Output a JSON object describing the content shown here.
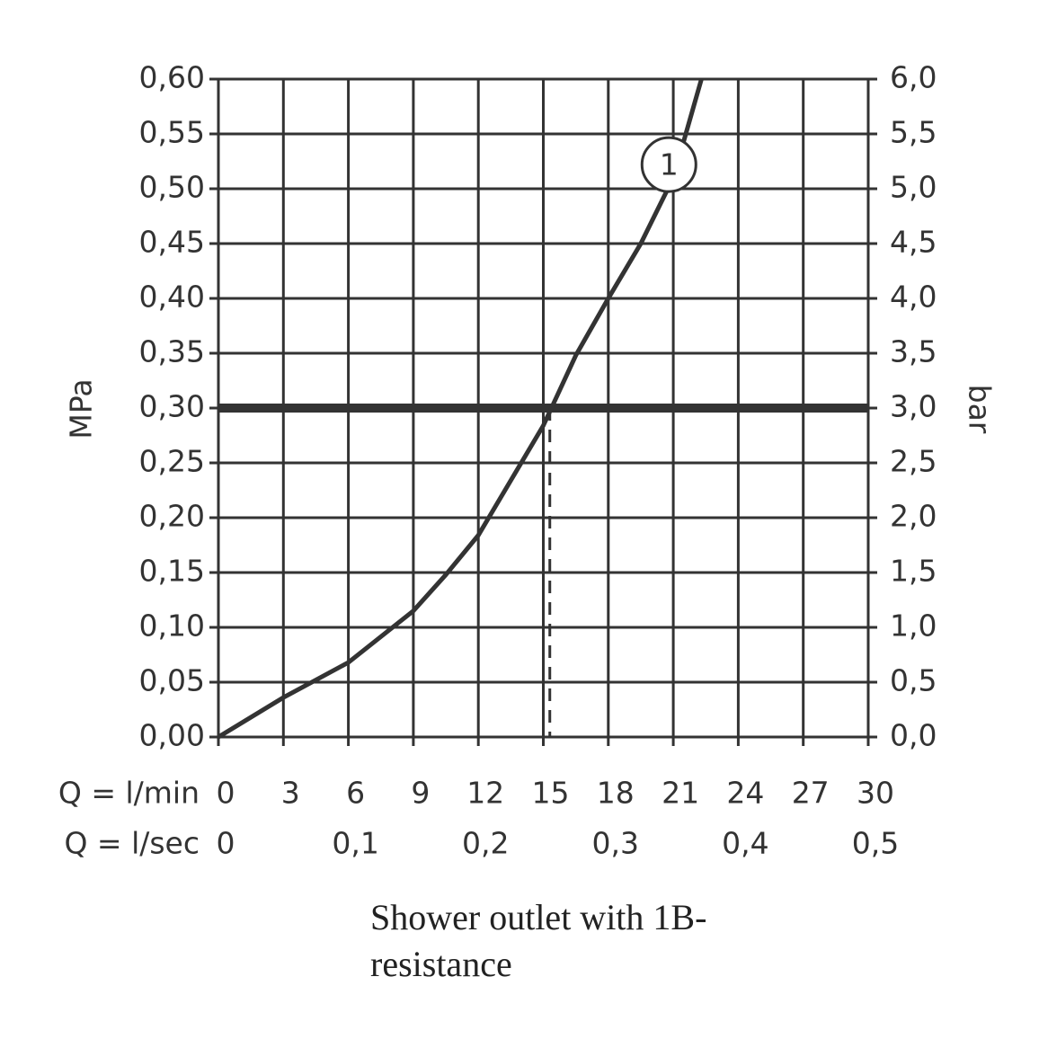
{
  "chart_data": {
    "type": "line",
    "x_label": "Q = l/min",
    "x2_label": "Q = l/sec",
    "y_label": "MPa",
    "y2_label": "bar",
    "caption": "Shower outlet with 1B-resistance",
    "x": [
      0,
      3,
      6,
      9,
      10.5,
      12,
      13.5,
      15,
      16.5,
      18,
      19.5,
      21,
      22.3
    ],
    "series": [
      {
        "color": "#333333",
        "values": [
          0,
          0.036,
          0.068,
          0.115,
          0.148,
          0.184,
          0.234,
          0.284,
          0.348,
          0.4,
          0.45,
          0.51,
          0.6
        ]
      }
    ],
    "xlim": [
      0,
      30
    ],
    "xticks": [
      0,
      3,
      6,
      9,
      12,
      15,
      18,
      21,
      24,
      27,
      30
    ],
    "x2lim": [
      0,
      0.5
    ],
    "x2ticks": [
      0,
      {
        "value": 0.1,
        "label": "0,1"
      },
      {
        "value": 0.2,
        "label": "0,2"
      },
      {
        "value": 0.3,
        "label": "0,3"
      },
      {
        "value": 0.4,
        "label": "0,4"
      },
      {
        "value": 0.5,
        "label": "0,5"
      }
    ],
    "ylim": [
      0,
      0.6
    ],
    "yticks": [
      {
        "value": 0,
        "label": "0,00"
      },
      {
        "value": 0.05,
        "label": "0,05"
      },
      {
        "value": 0.1,
        "label": "0,10"
      },
      {
        "value": 0.15,
        "label": "0,15"
      },
      {
        "value": 0.2,
        "label": "0,20"
      },
      {
        "value": 0.25,
        "label": "0,25"
      },
      {
        "value": 0.3,
        "label": "0,30"
      },
      {
        "value": 0.35,
        "label": "0,35"
      },
      {
        "value": 0.4,
        "label": "0,40"
      },
      {
        "value": 0.45,
        "label": "0,45"
      },
      {
        "value": 0.5,
        "label": "0,50"
      },
      {
        "value": 0.55,
        "label": "0,55"
      },
      {
        "value": 0.6,
        "label": "0,60"
      }
    ],
    "y2lim": [
      0,
      6
    ],
    "y2ticks": [
      {
        "value": 0,
        "label": "0,0"
      },
      {
        "value": 0.5,
        "label": "0,5"
      },
      {
        "value": 1,
        "label": "1,0"
      },
      {
        "value": 1.5,
        "label": "1,5"
      },
      {
        "value": 2,
        "label": "2,0"
      },
      {
        "value": 2.5,
        "label": "2,5"
      },
      {
        "value": 3,
        "label": "3,0"
      },
      {
        "value": 3.5,
        "label": "3,5"
      },
      {
        "value": 4,
        "label": "4,0"
      },
      {
        "value": 4.5,
        "label": "4,5"
      },
      {
        "value": 5,
        "label": "5,0"
      },
      {
        "value": 5.5,
        "label": "5,5"
      },
      {
        "value": 6,
        "label": "6,0"
      }
    ],
    "grid": true,
    "reference_y": 0.3,
    "reference_x": 15.3,
    "annotation": {
      "text": "1",
      "x": 20.8,
      "y": 0.522
    }
  }
}
